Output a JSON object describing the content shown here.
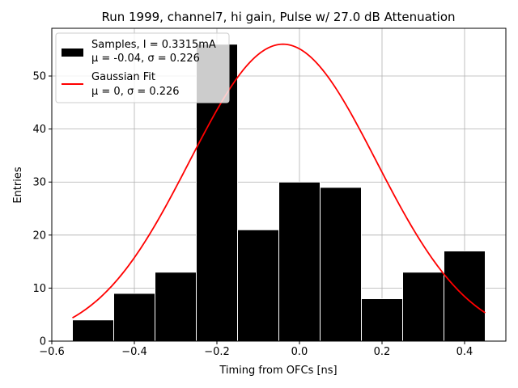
{
  "chart_data": {
    "type": "bar",
    "title": "Run 1999, channel7, hi gain, Pulse w/ 27.0 dB Attenuation",
    "xlabel": "Timing from OFCs [ns]",
    "ylabel": "Entries",
    "xlim": [
      -0.6,
      0.5
    ],
    "ylim": [
      0,
      59
    ],
    "xticks": [
      "−0.6",
      "−0.4",
      "−0.2",
      "0.0",
      "0.2",
      "0.4"
    ],
    "xtick_values": [
      -0.6,
      -0.4,
      -0.2,
      0.0,
      0.2,
      0.4
    ],
    "yticks": [
      "0",
      "10",
      "20",
      "30",
      "40",
      "50"
    ],
    "ytick_values": [
      0,
      10,
      20,
      30,
      40,
      50
    ],
    "grid": true,
    "legend_position": "top-left",
    "bins": [
      {
        "x0": -0.55,
        "x1": -0.45,
        "value": 4
      },
      {
        "x0": -0.45,
        "x1": -0.35,
        "value": 9
      },
      {
        "x0": -0.35,
        "x1": -0.25,
        "value": 13
      },
      {
        "x0": -0.25,
        "x1": -0.15,
        "value": 56
      },
      {
        "x0": -0.15,
        "x1": -0.05,
        "value": 21
      },
      {
        "x0": -0.05,
        "x1": 0.05,
        "value": 30
      },
      {
        "x0": 0.05,
        "x1": 0.15,
        "value": 29
      },
      {
        "x0": 0.15,
        "x1": 0.25,
        "value": 8
      },
      {
        "x0": 0.25,
        "x1": 0.35,
        "value": 13
      },
      {
        "x0": 0.35,
        "x1": 0.45,
        "value": 17
      }
    ],
    "series": [
      {
        "name": "Samples, I = 0.3315mA",
        "stats": "μ = -0.04, σ = 0.226",
        "kind": "histogram",
        "color": "#000000"
      },
      {
        "name": "Gaussian Fit",
        "stats": "μ = 0, σ = 0.226",
        "kind": "line",
        "color": "#ff0000",
        "fit": {
          "amplitude": 56,
          "mean": -0.04,
          "sigma": 0.226,
          "x_range": [
            -0.55,
            0.45
          ]
        }
      }
    ]
  }
}
